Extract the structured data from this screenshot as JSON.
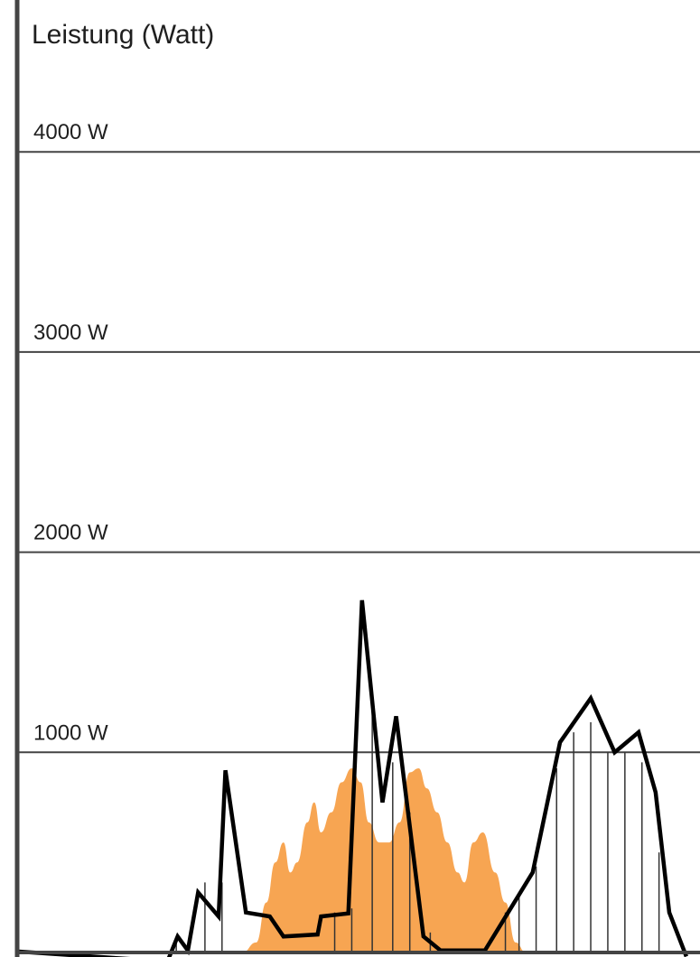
{
  "chart_data": {
    "type": "line",
    "ylabel": "Leistung (Watt)",
    "xlabel": "",
    "title": "",
    "ylim": [
      0,
      4500
    ],
    "yticks": [
      {
        "value": 1000,
        "label": "1000 W"
      },
      {
        "value": 2000,
        "label": "2000 W"
      },
      {
        "value": 3000,
        "label": "3000 W"
      },
      {
        "value": 4000,
        "label": "4000 W"
      }
    ],
    "x_range": [
      0,
      100
    ],
    "grid": true,
    "legend": "none",
    "colors": {
      "consumption_line": "#000000",
      "solar_area": "#f7a552",
      "hatch_lines": "#333333",
      "axis": "#444444",
      "grid": "#444444"
    },
    "series": [
      {
        "kind": "line",
        "points": [
          [
            0,
            5
          ],
          [
            22,
            -45
          ],
          [
            23.5,
            80
          ],
          [
            25,
            10
          ],
          [
            26.5,
            300
          ],
          [
            29.5,
            180
          ],
          [
            30.5,
            910
          ],
          [
            33.5,
            200
          ],
          [
            37,
            180
          ],
          [
            39,
            80
          ],
          [
            44,
            90
          ],
          [
            44.5,
            180
          ],
          [
            48.5,
            195
          ],
          [
            50.5,
            1760
          ],
          [
            53.5,
            750
          ],
          [
            55.5,
            1180
          ],
          [
            59.5,
            80
          ],
          [
            62,
            10
          ],
          [
            68.5,
            10
          ],
          [
            75.5,
            400
          ],
          [
            79.5,
            1050
          ],
          [
            84,
            1270
          ],
          [
            87.5,
            1000
          ],
          [
            91,
            1100
          ],
          [
            93.5,
            800
          ],
          [
            95.5,
            200
          ],
          [
            98,
            -20
          ]
        ]
      },
      {
        "kind": "area",
        "points": [
          [
            33,
            0
          ],
          [
            35,
            50
          ],
          [
            36.5,
            250
          ],
          [
            37.8,
            450
          ],
          [
            39,
            550
          ],
          [
            40,
            400
          ],
          [
            41,
            450
          ],
          [
            42.5,
            650
          ],
          [
            43.5,
            750
          ],
          [
            44.5,
            600
          ],
          [
            46,
            700
          ],
          [
            47.5,
            850
          ],
          [
            49,
            920
          ],
          [
            50.3,
            850
          ],
          [
            51.5,
            650
          ],
          [
            53,
            550
          ],
          [
            54.5,
            550
          ],
          [
            56,
            650
          ],
          [
            57.5,
            900
          ],
          [
            58.8,
            920
          ],
          [
            60,
            820
          ],
          [
            61.5,
            700
          ],
          [
            63,
            550
          ],
          [
            64.5,
            400
          ],
          [
            65.5,
            350
          ],
          [
            66.8,
            550
          ],
          [
            68.2,
            600
          ],
          [
            70,
            400
          ],
          [
            71.5,
            250
          ],
          [
            73,
            50
          ],
          [
            74.5,
            0
          ]
        ]
      }
    ],
    "hatch_bars": [
      [
        23.3,
        50
      ],
      [
        27.5,
        350
      ],
      [
        30,
        350
      ],
      [
        46.5,
        200
      ],
      [
        49,
        220
      ],
      [
        52,
        1250
      ],
      [
        55,
        950
      ],
      [
        57.5,
        700
      ],
      [
        60.5,
        100
      ],
      [
        71.5,
        200
      ],
      [
        73.5,
        300
      ],
      [
        76,
        430
      ],
      [
        79,
        920
      ],
      [
        81.5,
        1100
      ],
      [
        84,
        1150
      ],
      [
        86.5,
        1000
      ],
      [
        89,
        1000
      ],
      [
        91.5,
        950
      ],
      [
        94,
        500
      ]
    ]
  }
}
